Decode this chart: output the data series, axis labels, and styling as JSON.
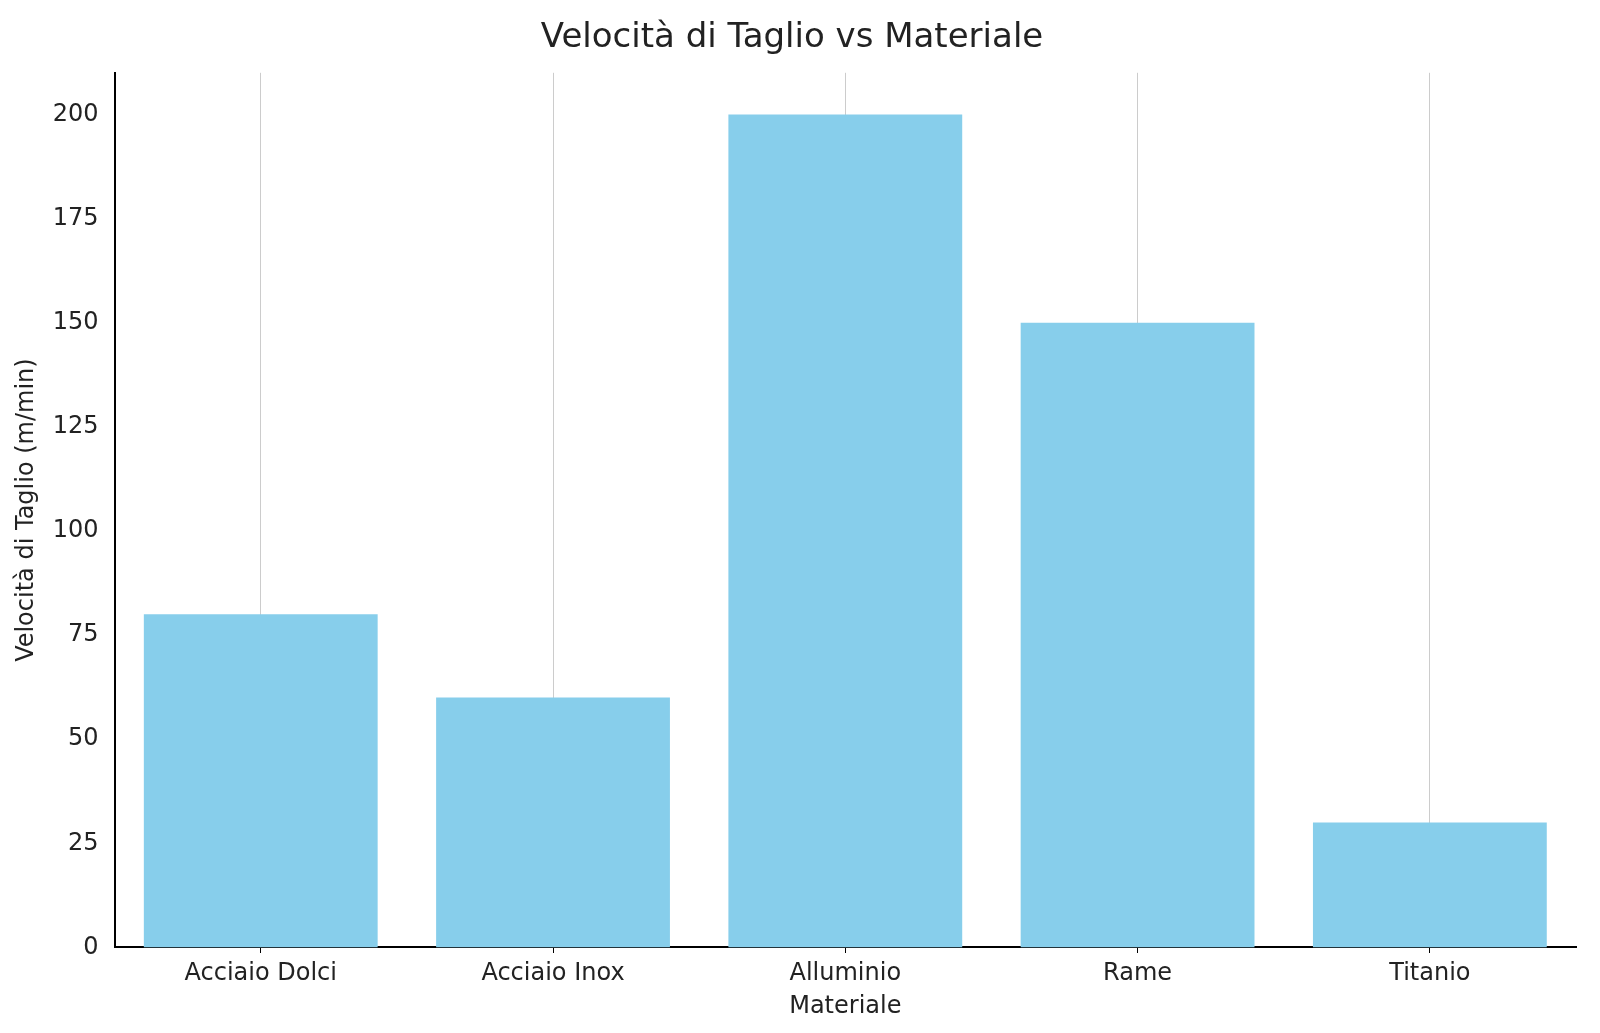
{
  "chart_data": {
    "type": "bar",
    "title": "Velocità di Taglio vs Materiale",
    "xlabel": "Materiale",
    "ylabel": "Velocità di Taglio (m/min)",
    "categories": [
      "Acciaio Dolci",
      "Acciaio Inox",
      "Alluminio",
      "Rame",
      "Titanio"
    ],
    "values": [
      80,
      60,
      200,
      150,
      30
    ],
    "color": "#87ceeb",
    "ylim": [
      0,
      210
    ],
    "yticks": [
      0,
      25,
      50,
      75,
      100,
      125,
      150,
      175,
      200
    ],
    "grid": "x"
  }
}
